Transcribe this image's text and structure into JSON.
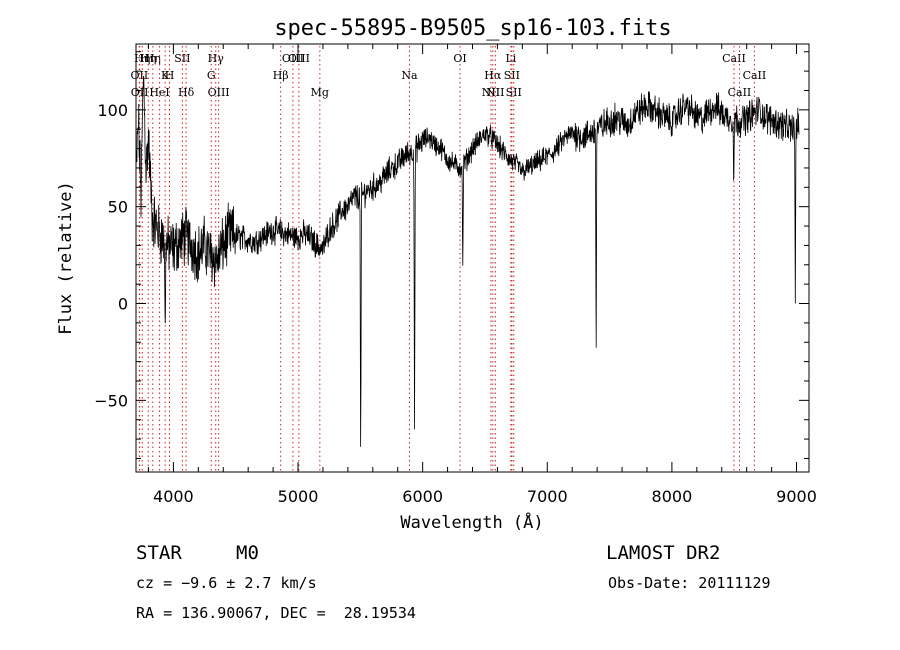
{
  "chart_data": {
    "type": "line",
    "title": "spec-55895-B9505_sp16-103.fits",
    "xlabel": "Wavelength (Å)",
    "ylabel": "Flux (relative)",
    "xlim": [
      3700,
      9100
    ],
    "ylim": [
      -87,
      134
    ],
    "x_ticks": [
      4000,
      5000,
      6000,
      7000,
      8000,
      9000
    ],
    "y_ticks": [
      -50,
      0,
      50,
      100
    ],
    "grid": false,
    "line_color": "#000000",
    "marker_color": "#d02020",
    "spectrum": {
      "x": [
        3700,
        3720,
        3740,
        3760,
        3780,
        3800,
        3830,
        3860,
        3900,
        3950,
        4000,
        4050,
        4100,
        4150,
        4200,
        4250,
        4300,
        4350,
        4400,
        4450,
        4500,
        4550,
        4600,
        4650,
        4700,
        4750,
        4800,
        4850,
        4900,
        4950,
        5000,
        5050,
        5100,
        5150,
        5200,
        5250,
        5300,
        5350,
        5400,
        5450,
        5500,
        5550,
        5600,
        5650,
        5700,
        5750,
        5800,
        5850,
        5900,
        5950,
        6000,
        6050,
        6100,
        6150,
        6200,
        6250,
        6300,
        6350,
        6400,
        6450,
        6500,
        6550,
        6600,
        6650,
        6700,
        6750,
        6800,
        6850,
        6900,
        6950,
        7000,
        7050,
        7100,
        7150,
        7200,
        7250,
        7300,
        7350,
        7400,
        7450,
        7500,
        7550,
        7600,
        7650,
        7700,
        7750,
        7800,
        7850,
        7900,
        7950,
        8000,
        8050,
        8100,
        8150,
        8200,
        8250,
        8300,
        8350,
        8400,
        8450,
        8500,
        8550,
        8600,
        8650,
        8700,
        8750,
        8800,
        8850,
        8900,
        8950,
        9000
      ],
      "y": [
        65,
        95,
        55,
        120,
        70,
        85,
        45,
        40,
        35,
        30,
        28,
        32,
        35,
        30,
        26,
        30,
        25,
        22,
        30,
        36,
        35,
        34,
        33,
        32,
        34,
        36,
        38,
        37,
        36,
        35,
        34,
        36,
        34,
        30,
        28,
        38,
        42,
        48,
        50,
        55,
        55,
        58,
        60,
        62,
        66,
        70,
        72,
        76,
        78,
        80,
        84,
        86,
        82,
        80,
        74,
        72,
        70,
        74,
        80,
        84,
        88,
        86,
        82,
        78,
        74,
        72,
        68,
        70,
        72,
        74,
        76,
        78,
        82,
        86,
        88,
        87,
        86,
        88,
        90,
        92,
        94,
        96,
        94,
        92,
        98,
        100,
        102,
        100,
        98,
        96,
        94,
        98,
        102,
        100,
        96,
        95,
        100,
        102,
        98,
        96,
        95,
        94,
        96,
        98,
        100,
        96,
        95,
        93,
        92,
        90,
        92
      ]
    },
    "absorption_lines": [
      {
        "x": 3934,
        "y": -20
      },
      {
        "x": 5503,
        "y": -86
      },
      {
        "x": 5935,
        "y": -65
      },
      {
        "x": 6322,
        "y": 15
      },
      {
        "x": 7392,
        "y": -33
      },
      {
        "x": 8496,
        "y": 58
      },
      {
        "x": 8990,
        "y": 0
      }
    ],
    "line_markers": [
      {
        "x": 3727,
        "label": "OII",
        "row": 2
      },
      {
        "x": 3729,
        "label": "OII",
        "row": 3
      },
      {
        "x": 3750,
        "label": "Hη",
        "row": 1
      },
      {
        "x": 3798,
        "label": "Hη",
        "row": 1
      },
      {
        "x": 3835,
        "label": "Hη",
        "row": 1
      },
      {
        "x": 3889,
        "label": "HeI",
        "row": 3
      },
      {
        "x": 3934,
        "label": "K",
        "row": 2
      },
      {
        "x": 3969,
        "label": "H",
        "row": 2
      },
      {
        "x": 4072,
        "label": "SII",
        "row": 1
      },
      {
        "x": 4102,
        "label": "Hδ",
        "row": 3
      },
      {
        "x": 4304,
        "label": "G",
        "row": 2
      },
      {
        "x": 4340,
        "label": "Hγ",
        "row": 1
      },
      {
        "x": 4363,
        "label": "OIII",
        "row": 3
      },
      {
        "x": 4861,
        "label": "Hβ",
        "row": 2
      },
      {
        "x": 4959,
        "label": "OIII",
        "row": 1
      },
      {
        "x": 5007,
        "label": "OIII",
        "row": 1
      },
      {
        "x": 5175,
        "label": "Mg",
        "row": 3
      },
      {
        "x": 5894,
        "label": "Na",
        "row": 2
      },
      {
        "x": 6300,
        "label": "OI",
        "row": 1
      },
      {
        "x": 6548,
        "label": "NII",
        "row": 3
      },
      {
        "x": 6563,
        "label": "Hα",
        "row": 2
      },
      {
        "x": 6583,
        "label": "NII",
        "row": 3
      },
      {
        "x": 6708,
        "label": "Li",
        "row": 1
      },
      {
        "x": 6716,
        "label": "SII",
        "row": 2
      },
      {
        "x": 6731,
        "label": "SII",
        "row": 3
      },
      {
        "x": 8498,
        "label": "CaII",
        "row": 1
      },
      {
        "x": 8542,
        "label": "CaII",
        "row": 3
      },
      {
        "x": 8662,
        "label": "CaII",
        "row": 2
      }
    ]
  },
  "info": {
    "object_class": "STAR",
    "subclass": "M0",
    "survey": "LAMOST DR2",
    "redshift_text": "cz = −9.6 ± 2.7 km/s",
    "obs_date_text": "Obs-Date: 20111129",
    "coords_text": "RA = 136.90067, DEC =  28.19534"
  }
}
